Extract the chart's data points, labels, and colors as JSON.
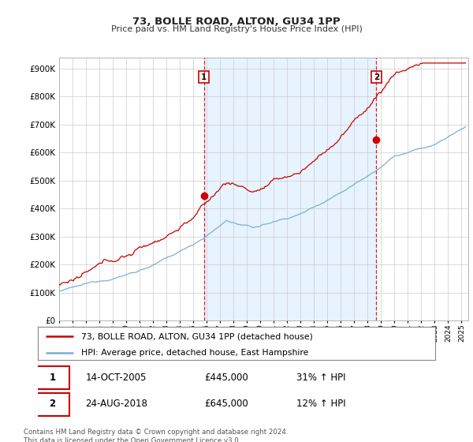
{
  "title": "73, BOLLE ROAD, ALTON, GU34 1PP",
  "subtitle": "Price paid vs. HM Land Registry's House Price Index (HPI)",
  "ytick_values": [
    0,
    100000,
    200000,
    300000,
    400000,
    500000,
    600000,
    700000,
    800000,
    900000
  ],
  "ylim": [
    0,
    940000
  ],
  "xlim_start": 1995.0,
  "xlim_end": 2025.5,
  "red_line_color": "#cc0000",
  "blue_line_color": "#7bafd4",
  "shade_color": "#ddeeff",
  "dashed_line_color": "#cc0000",
  "marker1_x": 2005.79,
  "marker1_y": 445000,
  "marker2_x": 2018.65,
  "marker2_y": 645000,
  "annotation1_date": "14-OCT-2005",
  "annotation1_price": "£445,000",
  "annotation1_hpi": "31% ↑ HPI",
  "annotation2_date": "24-AUG-2018",
  "annotation2_price": "£645,000",
  "annotation2_hpi": "12% ↑ HPI",
  "legend_red_label": "73, BOLLE ROAD, ALTON, GU34 1PP (detached house)",
  "legend_blue_label": "HPI: Average price, detached house, East Hampshire",
  "footer": "Contains HM Land Registry data © Crown copyright and database right 2024.\nThis data is licensed under the Open Government Licence v3.0.",
  "background_color": "#ffffff",
  "grid_color": "#cccccc",
  "spine_color": "#aaaaaa"
}
